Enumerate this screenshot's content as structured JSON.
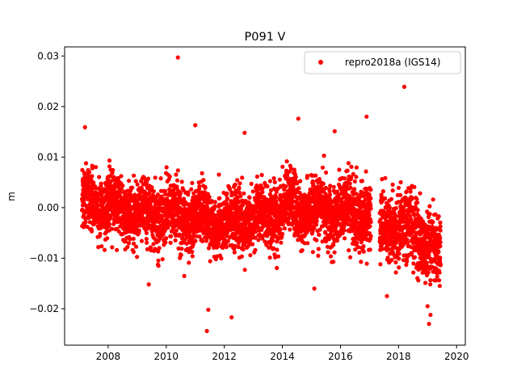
{
  "chart_data": {
    "type": "scatter",
    "title": "P091 V",
    "xlabel": "",
    "ylabel": "m",
    "xlim": [
      2006.5,
      2020.3
    ],
    "ylim": [
      -0.0272,
      0.0318
    ],
    "xticks": [
      2008,
      2010,
      2012,
      2014,
      2016,
      2018,
      2020
    ],
    "xtick_labels": [
      "2008",
      "2010",
      "2012",
      "2014",
      "2016",
      "2018",
      "2020"
    ],
    "yticks": [
      -0.02,
      -0.01,
      0.0,
      0.01,
      0.02,
      0.03
    ],
    "ytick_labels": [
      "−0.02",
      "−0.01",
      "0.00",
      "0.01",
      "0.02",
      "0.03"
    ],
    "grid": false,
    "legend_position": "top-right",
    "marker_color": "#ff0000",
    "series": [
      {
        "name": "repro2018a (IGS14)",
        "color": "#ff0000",
        "segments": [
          {
            "x_start": 2007.1,
            "x_end": 2012.0,
            "center_start": 0.001,
            "center_end": -0.003,
            "spread": 0.004,
            "count": 1750
          },
          {
            "x_start": 2012.0,
            "x_end": 2014.0,
            "center_start": -0.003,
            "center_end": -0.001,
            "spread": 0.004,
            "count": 720
          },
          {
            "x_start": 2014.0,
            "x_end": 2017.05,
            "center_start": 0.0,
            "center_end": -0.001,
            "spread": 0.0042,
            "count": 1100
          },
          {
            "x_start": 2017.35,
            "x_end": 2018.65,
            "center_start": -0.004,
            "center_end": -0.004,
            "spread": 0.0045,
            "count": 420
          },
          {
            "x_start": 2018.65,
            "x_end": 2019.45,
            "center_start": -0.006,
            "center_end": -0.009,
            "spread": 0.004,
            "count": 340
          }
        ],
        "outliers": [
          {
            "x": 2010.4,
            "y": 0.0297
          },
          {
            "x": 2018.2,
            "y": 0.0239
          },
          {
            "x": 2016.9,
            "y": 0.018
          },
          {
            "x": 2014.55,
            "y": 0.0176
          },
          {
            "x": 2007.2,
            "y": 0.0159
          },
          {
            "x": 2011.0,
            "y": 0.0163
          },
          {
            "x": 2015.8,
            "y": 0.0151
          },
          {
            "x": 2012.7,
            "y": 0.0148
          },
          {
            "x": 2011.4,
            "y": -0.0244
          },
          {
            "x": 2012.25,
            "y": -0.0217
          },
          {
            "x": 2011.45,
            "y": -0.0202
          },
          {
            "x": 2019.05,
            "y": -0.023
          },
          {
            "x": 2019.1,
            "y": -0.0212
          },
          {
            "x": 2019.0,
            "y": -0.0195
          },
          {
            "x": 2015.1,
            "y": -0.016
          },
          {
            "x": 2009.4,
            "y": -0.0152
          },
          {
            "x": 2017.6,
            "y": -0.0175
          }
        ]
      }
    ]
  }
}
